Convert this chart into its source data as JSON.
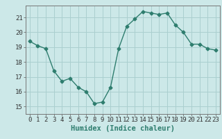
{
  "x": [
    0,
    1,
    2,
    3,
    4,
    5,
    6,
    7,
    8,
    9,
    10,
    11,
    12,
    13,
    14,
    15,
    16,
    17,
    18,
    19,
    20,
    21,
    22,
    23
  ],
  "y": [
    19.4,
    19.1,
    18.9,
    17.4,
    16.7,
    16.9,
    16.3,
    16.0,
    15.2,
    15.3,
    16.3,
    18.9,
    20.4,
    20.9,
    21.4,
    21.3,
    21.2,
    21.3,
    20.5,
    20.0,
    19.2,
    19.2,
    18.9,
    18.8
  ],
  "line_color": "#2e7d6e",
  "marker": "D",
  "marker_size": 2.5,
  "bg_color": "#cce8e8",
  "grid_color": "#aacfcf",
  "xlabel": "Humidex (Indice chaleur)",
  "ylim": [
    14.5,
    21.8
  ],
  "xlim": [
    -0.5,
    23.5
  ],
  "yticks": [
    15,
    16,
    17,
    18,
    19,
    20,
    21
  ],
  "xticks": [
    0,
    1,
    2,
    3,
    4,
    5,
    6,
    7,
    8,
    9,
    10,
    11,
    12,
    13,
    14,
    15,
    16,
    17,
    18,
    19,
    20,
    21,
    22,
    23
  ],
  "xlabel_fontsize": 7.5,
  "tick_fontsize": 6.5,
  "linewidth": 1.0
}
